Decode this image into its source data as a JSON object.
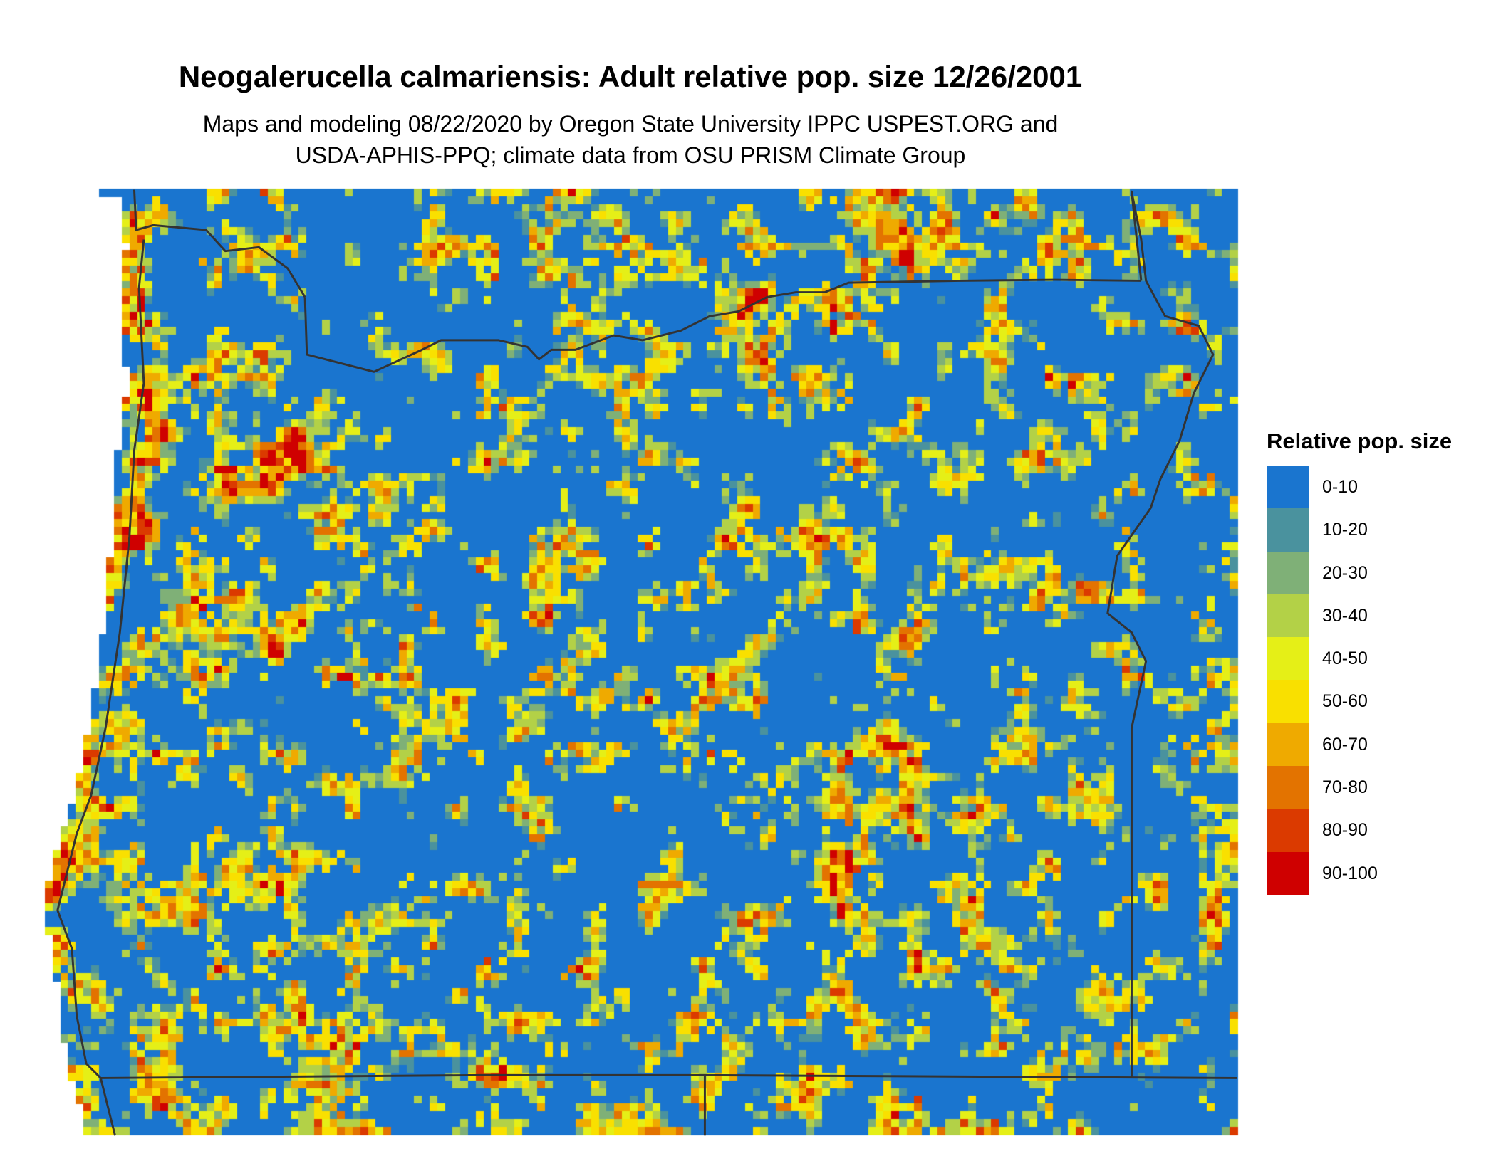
{
  "title": "Neogalerucella calmariensis: Adult relative pop. size 12/26/2001",
  "subtitle_lines": [
    "Maps and modeling 08/22/2020 by Oregon State University IPPC USPEST.ORG and",
    "USDA-APHIS-PPQ; climate data from OSU PRISM Climate Group"
  ],
  "legend": {
    "title": "Relative pop. size",
    "items": [
      {
        "label": "0-10",
        "color": "#1a75cf"
      },
      {
        "label": "10-20",
        "color": "#4a929e"
      },
      {
        "label": "20-30",
        "color": "#7fb077"
      },
      {
        "label": "30-40",
        "color": "#b3d147"
      },
      {
        "label": "40-50",
        "color": "#e5ef17"
      },
      {
        "label": "50-60",
        "color": "#f9e000"
      },
      {
        "label": "60-70",
        "color": "#efaa00"
      },
      {
        "label": "70-80",
        "color": "#e37300"
      },
      {
        "label": "80-90",
        "color": "#db3a00"
      },
      {
        "label": "90-100",
        "color": "#cf0000"
      }
    ]
  },
  "map": {
    "region": "Oregon",
    "border_color": "#333333",
    "background_class": "0-10"
  }
}
